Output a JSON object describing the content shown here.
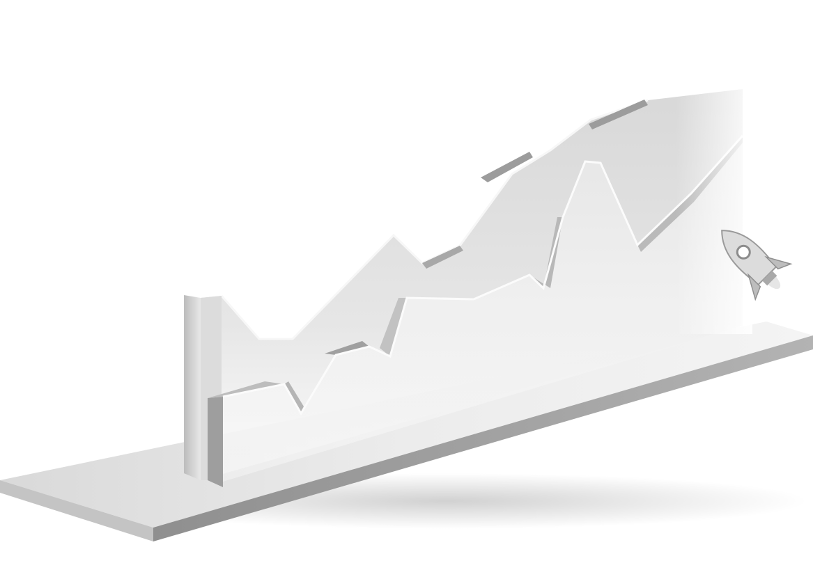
{
  "illustration": {
    "subject": "3d-rising-line-chart-with-rocket",
    "trend": "upward",
    "icons": [
      "rocket-icon"
    ],
    "colors": {
      "background": "#ffffff",
      "base_top": "#e3e3e3",
      "base_front": "#a3a3a3",
      "ribbon_back": "#dedede",
      "ribbon_front": "#ececec",
      "ribbon_edge": "#bdbdbd",
      "rocket": "#d6d6d6"
    }
  }
}
